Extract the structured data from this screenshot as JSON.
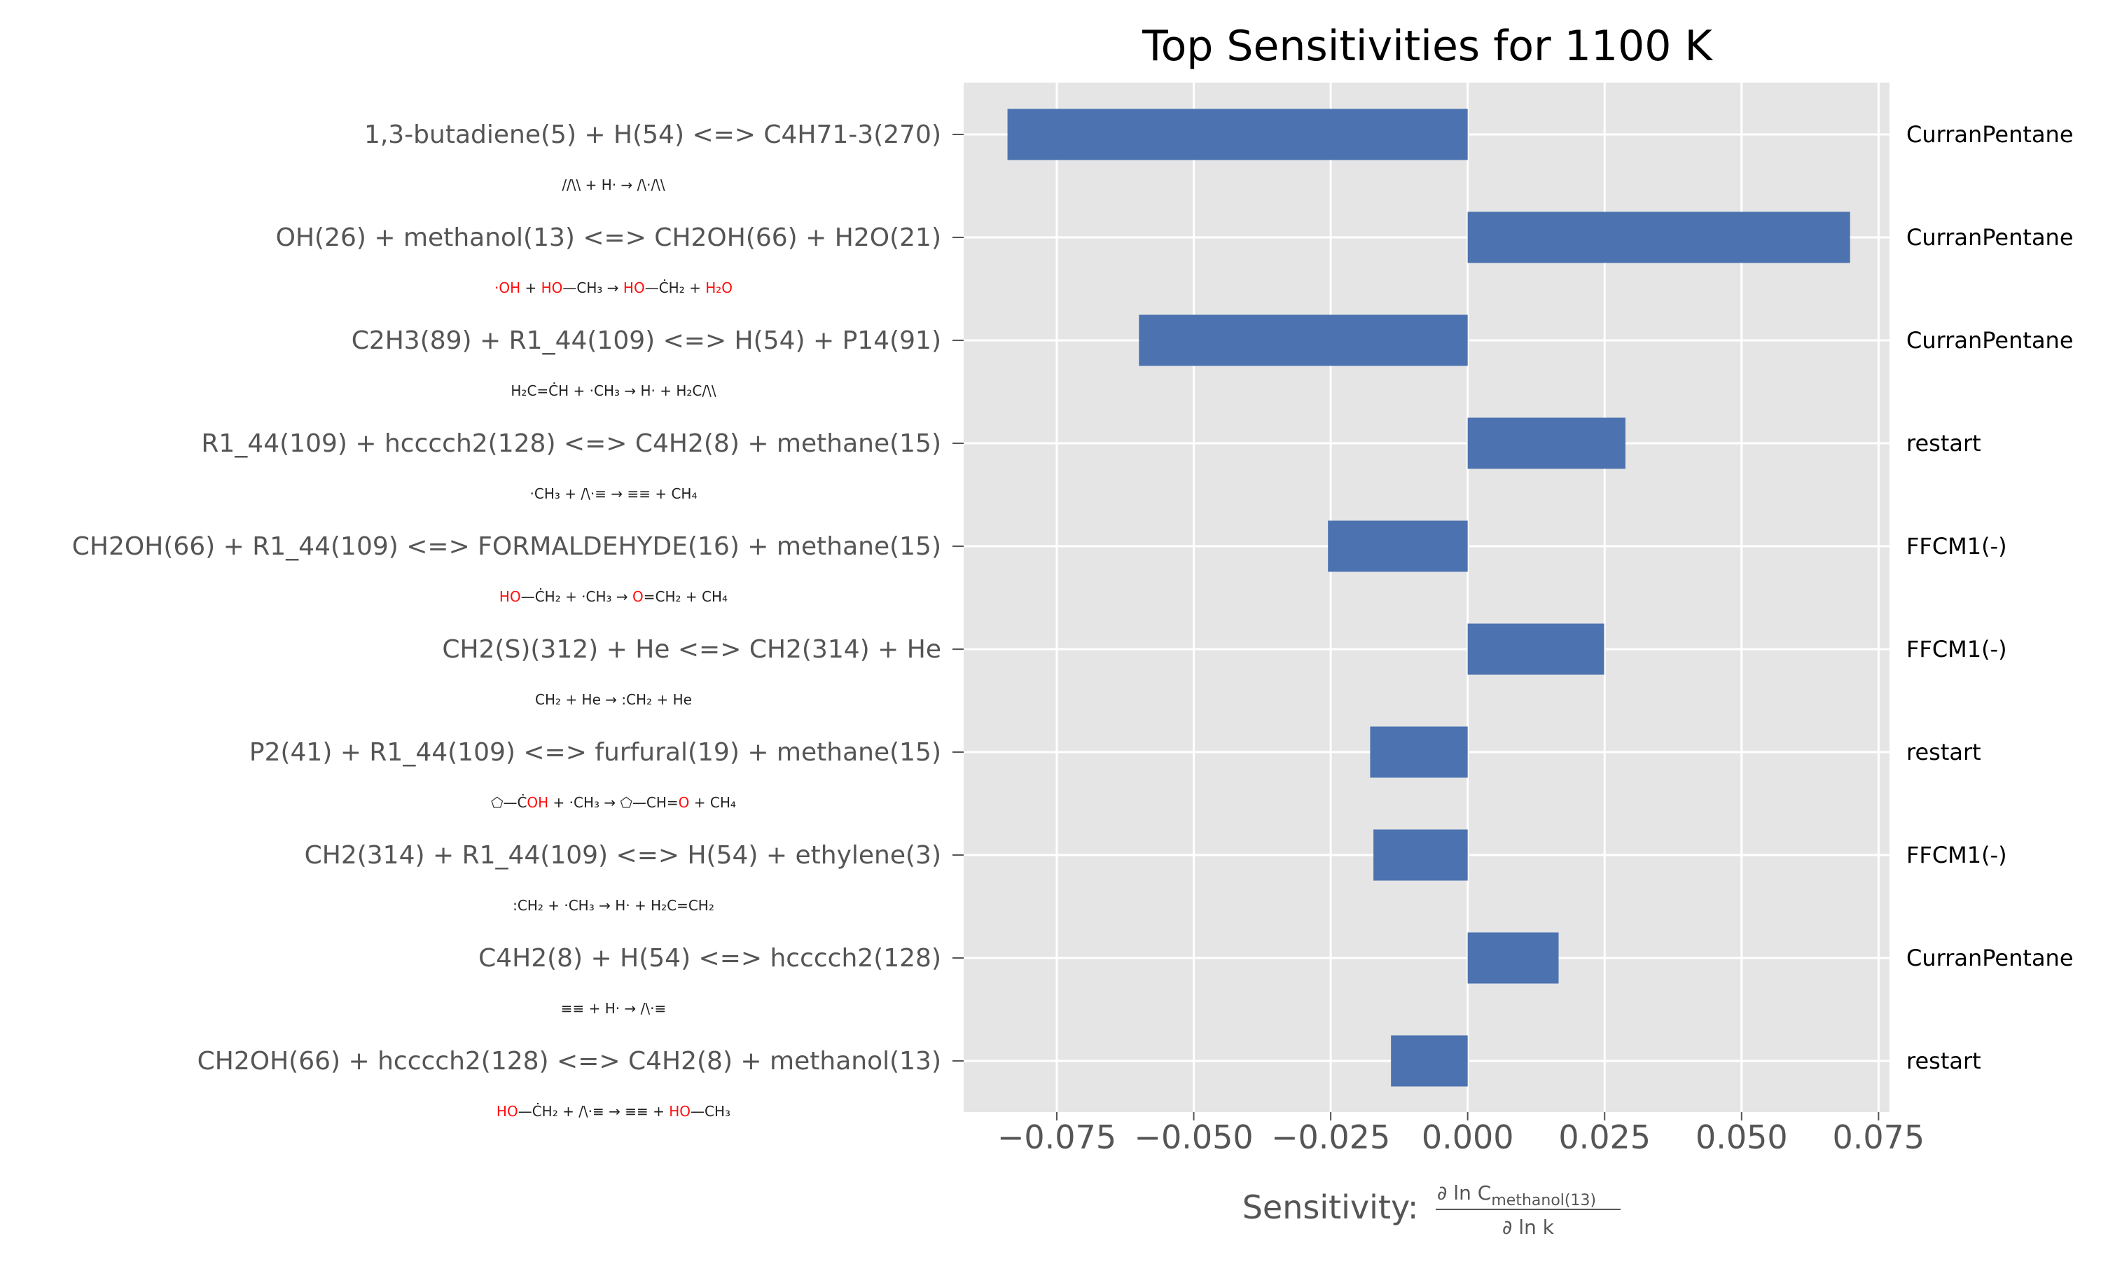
{
  "chart_data": {
    "type": "bar",
    "orientation": "horizontal",
    "title": "Top Sensitivities for 1100 K",
    "xlabel_prefix": "Sensitivity: ",
    "xlabel_numerator": "∂ ln C",
    "xlabel_numerator_sub": "methanol(13)",
    "xlabel_denominator": "∂ ln k",
    "xlim": [
      -0.092,
      0.077
    ],
    "xticks": [
      -0.075,
      -0.05,
      -0.025,
      0.0,
      0.025,
      0.05,
      0.075
    ],
    "xtick_labels": [
      "−0.075",
      "−0.050",
      "−0.025",
      "0.000",
      "0.025",
      "0.050",
      "0.075"
    ],
    "grid": true,
    "bar_color": "#4c72b0",
    "plot_background": "#e5e5e5",
    "categories": [
      "1,3-butadiene(5) + H(54) <=> C4H71-3(270)",
      "OH(26) + methanol(13) <=> CH2OH(66) + H2O(21)",
      "C2H3(89) + R1_44(109) <=> H(54) + P14(91)",
      "R1_44(109) + hcccch2(128) <=> C4H2(8) + methane(15)",
      "CH2OH(66) + R1_44(109) <=> FORMALDEHYDE(16) + methane(15)",
      "CH2(S)(312) + He <=> CH2(314) + He",
      "P2(41) + R1_44(109) <=> furfural(19) + methane(15)",
      "CH2(314) + R1_44(109) <=> H(54) + ethylene(3)",
      "C4H2(8) + H(54) <=> hcccch2(128)",
      "CH2OH(66) + hcccch2(128) <=> C4H2(8) + methanol(13)"
    ],
    "values": [
      -0.084,
      0.0698,
      -0.06,
      0.0288,
      -0.0255,
      0.0249,
      -0.0178,
      -0.0172,
      0.0166,
      -0.014
    ],
    "sources": [
      "CurranPentane",
      "CurranPentane",
      "CurranPentane",
      "restart",
      "FFCM1(-)",
      "FFCM1(-)",
      "restart",
      "FFCM1(-)",
      "CurranPentane",
      "restart"
    ],
    "structure_schemes": [
      [
        {
          "t": "//\\\\",
          "c": "k"
        },
        {
          "t": " + H· → ",
          "c": "k"
        },
        {
          "t": "/\\·/\\\\",
          "c": "k"
        }
      ],
      [
        {
          "t": "·OH",
          "c": "r"
        },
        {
          "t": " + ",
          "c": "k"
        },
        {
          "t": "HO",
          "c": "r"
        },
        {
          "t": "—CH₃ → ",
          "c": "k"
        },
        {
          "t": "HO",
          "c": "r"
        },
        {
          "t": "—ĊH₂ + ",
          "c": "k"
        },
        {
          "t": "H₂O",
          "c": "r"
        }
      ],
      [
        {
          "t": "H₂C=ĊH + ·CH₃ → H· + H₂C",
          "c": "k"
        },
        {
          "t": "/\\\\",
          "c": "k"
        }
      ],
      [
        {
          "t": "·CH₃ + ",
          "c": "k"
        },
        {
          "t": "/\\·≡",
          "c": "k"
        },
        {
          "t": " → ",
          "c": "k"
        },
        {
          "t": "≡≡",
          "c": "k"
        },
        {
          "t": " + CH₄",
          "c": "k"
        }
      ],
      [
        {
          "t": "HO",
          "c": "r"
        },
        {
          "t": "—ĊH₂ + ·CH₃ → ",
          "c": "k"
        },
        {
          "t": "O",
          "c": "r"
        },
        {
          "t": "=CH₂ + CH₄",
          "c": "k"
        }
      ],
      [
        {
          "t": "CH₂ + He → :CH₂ + He",
          "c": "k"
        }
      ],
      [
        {
          "t": "⬠—Ċ",
          "c": "k"
        },
        {
          "t": "OH",
          "c": "r"
        },
        {
          "t": " + ·CH₃ → ⬠—CH=",
          "c": "k"
        },
        {
          "t": "O",
          "c": "r"
        },
        {
          "t": " + CH₄",
          "c": "k"
        }
      ],
      [
        {
          "t": ":CH₂ + ·CH₃ → H· + H₂C=CH₂",
          "c": "k"
        }
      ],
      [
        {
          "t": "≡≡",
          "c": "k"
        },
        {
          "t": " + H· → ",
          "c": "k"
        },
        {
          "t": "/\\·≡",
          "c": "k"
        }
      ],
      [
        {
          "t": "HO",
          "c": "r"
        },
        {
          "t": "—ĊH₂ + ",
          "c": "k"
        },
        {
          "t": "/\\·≡",
          "c": "k"
        },
        {
          "t": " → ",
          "c": "k"
        },
        {
          "t": "≡≡",
          "c": "k"
        },
        {
          "t": " + ",
          "c": "k"
        },
        {
          "t": "HO",
          "c": "r"
        },
        {
          "t": "—CH₃",
          "c": "k"
        }
      ]
    ]
  }
}
